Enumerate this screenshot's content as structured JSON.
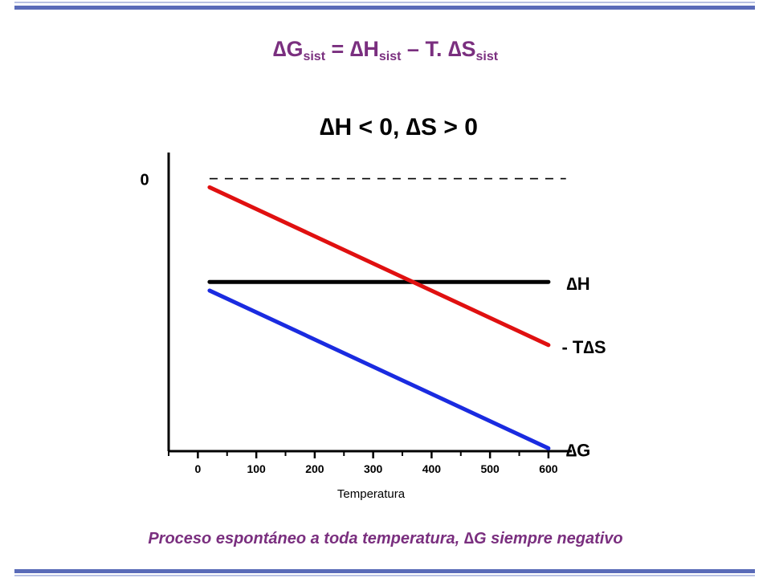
{
  "equation": {
    "delta": "∆",
    "G": "G",
    "H": "H",
    "S": "S",
    "sub": "sist",
    "equals": " = ",
    "minus_T": " – T. "
  },
  "condition": "∆H < 0, ∆S > 0",
  "caption": "Proceso espontáneo a toda temperatura, ∆G siempre negativo",
  "colors": {
    "accent_bar": "#5a6bb8",
    "accent_text": "#7a2f7f",
    "dH": "#000000",
    "minus_TdS": "#e01010",
    "dG": "#1a2be0"
  },
  "chart_data": {
    "type": "line",
    "xlabel": "Temperatura",
    "ylabel": "",
    "x_ticks": [
      0,
      100,
      200,
      300,
      400,
      500,
      600
    ],
    "xlim": [
      -50,
      640
    ],
    "ylim": [
      -9.5,
      0.8
    ],
    "y_ticks": [
      0
    ],
    "zero_line": "dashed",
    "grid": false,
    "series": [
      {
        "name": "∆H",
        "color": "#000000",
        "x": [
          20,
          600
        ],
        "y": [
          -3.6,
          -3.6
        ]
      },
      {
        "name": "- T∆S",
        "color": "#e01010",
        "x": [
          20,
          600
        ],
        "y": [
          -0.3,
          -5.8
        ]
      },
      {
        "name": "∆G",
        "color": "#1a2be0",
        "x": [
          20,
          600
        ],
        "y": [
          -3.9,
          -9.4
        ]
      }
    ]
  }
}
